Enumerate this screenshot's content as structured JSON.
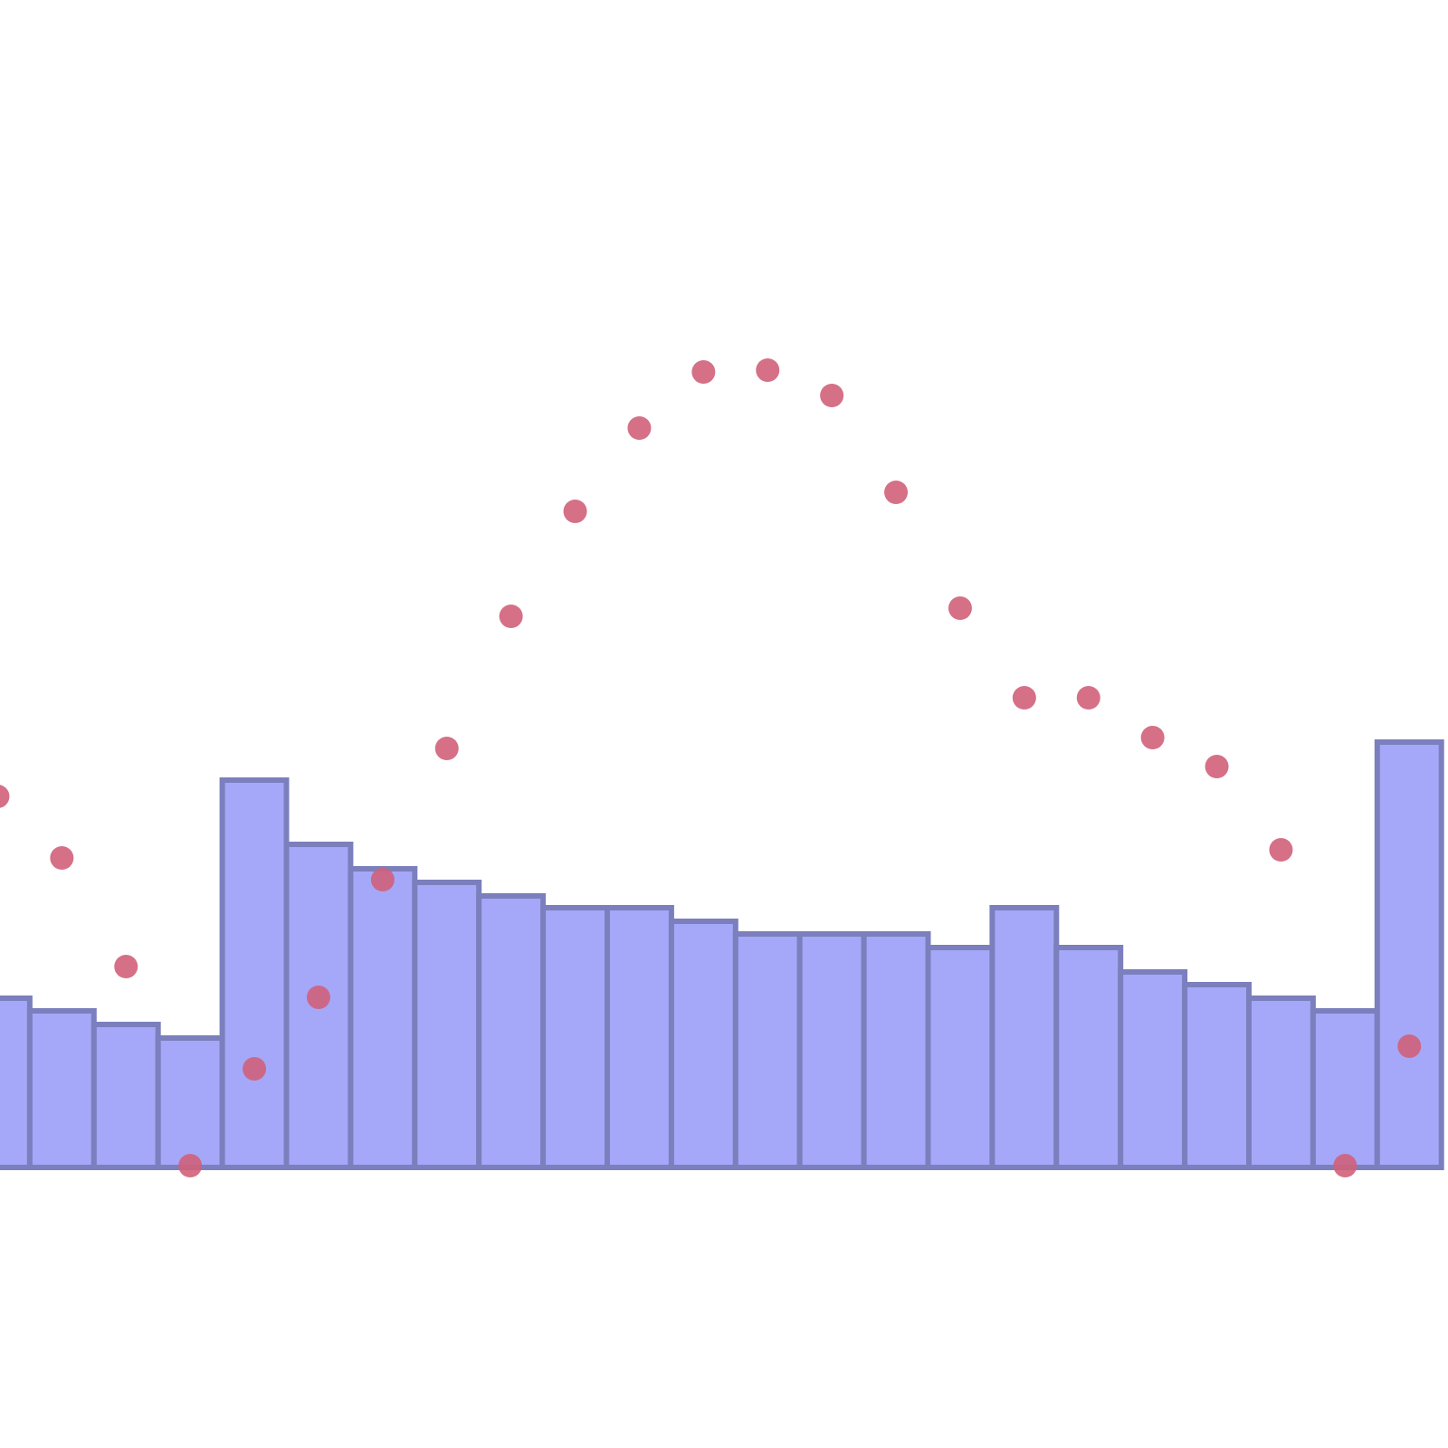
{
  "chart_data": {
    "type": "bar",
    "categories": [
      null,
      null,
      null,
      null,
      null,
      null,
      null,
      null,
      null,
      null,
      null,
      null,
      null,
      null,
      null,
      null,
      null,
      null,
      null,
      null,
      null,
      null,
      null
    ],
    "series": [
      {
        "type": "bar",
        "color": "#a5a8f8",
        "values": [
          18.7,
          17.3,
          15.8,
          14.3,
          42.8,
          35.7,
          33,
          31.5,
          30,
          28.7,
          28.7,
          27.2,
          25.8,
          25.8,
          25.8,
          24.3,
          28.7,
          24.3,
          21.6,
          20.2,
          18.7,
          17.3,
          47
        ]
      },
      {
        "type": "scatter",
        "color": "#d0607a",
        "values": [
          41,
          34.2,
          22.2,
          0.2,
          10.9,
          18.8,
          31.8,
          46.3,
          60.9,
          72.5,
          81.7,
          87.9,
          88.1,
          85.3,
          74.6,
          61.8,
          51.9,
          51.9,
          47.5,
          44.3,
          35.1,
          0.2,
          13.4
        ]
      }
    ],
    "ylim": [
      0,
      129
    ]
  }
}
